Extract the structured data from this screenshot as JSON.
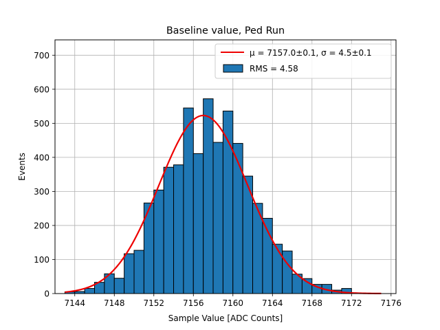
{
  "chart_data": {
    "type": "bar",
    "title": "Baseline value, Ped Run",
    "xlabel": "Sample Value [ADC Counts]",
    "ylabel": "Events",
    "xlim": [
      7142,
      7176.5
    ],
    "ylim": [
      0,
      745
    ],
    "xticks": [
      7144,
      7148,
      7152,
      7156,
      7160,
      7164,
      7168,
      7172,
      7176
    ],
    "yticks": [
      0,
      100,
      200,
      300,
      400,
      500,
      600,
      700
    ],
    "grid": true,
    "legend_position": "top-right",
    "histogram": {
      "name": "RMS = 4.58",
      "color": "#1f77b4",
      "bin_edges": [
        7143.0,
        7144.0,
        7145.0,
        7146.0,
        7147.0,
        7148.0,
        7149.0,
        7150.0,
        7151.0,
        7152.0,
        7153.0,
        7154.0,
        7155.0,
        7156.0,
        7157.0,
        7158.0,
        7159.0,
        7160.0,
        7161.0,
        7162.0,
        7163.0,
        7164.0,
        7165.0,
        7166.0,
        7167.0,
        7168.0,
        7169.0,
        7170.0,
        7171.0,
        7172.0,
        7173.0
      ],
      "counts": [
        5,
        6,
        15,
        33,
        58,
        45,
        117,
        127,
        266,
        304,
        371,
        378,
        545,
        411,
        572,
        444,
        536,
        441,
        345,
        265,
        221,
        145,
        125,
        57,
        44,
        27,
        27,
        10,
        15,
        0
      ]
    },
    "fit": {
      "name": "μ = 7157.0±0.1, σ = 4.5±0.1",
      "color": "#ee0000",
      "mu": 7157.0,
      "sigma": 4.5,
      "amplitude": 523,
      "x_range": [
        7143.0,
        7175.0
      ]
    }
  }
}
